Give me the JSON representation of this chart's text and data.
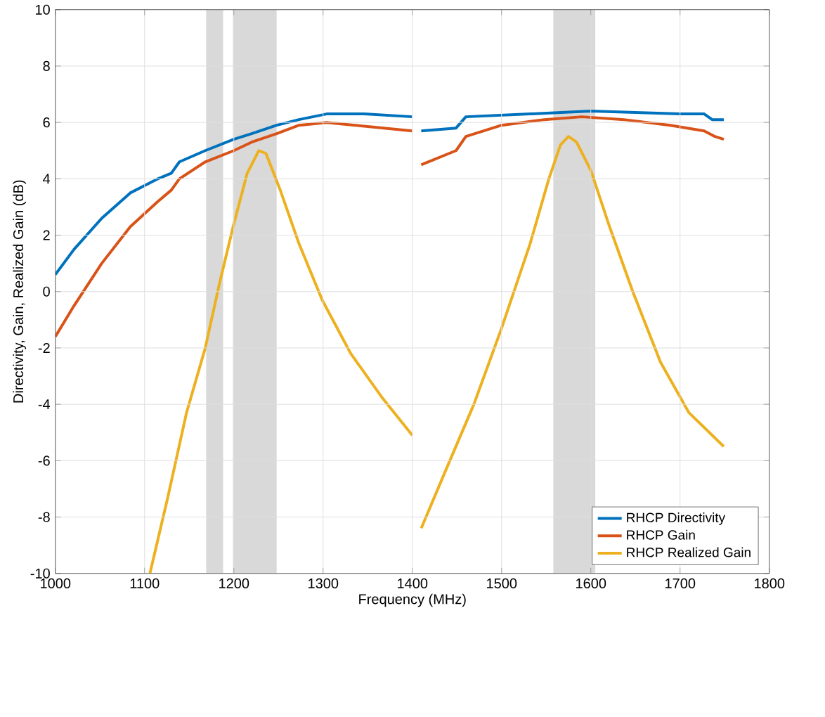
{
  "chart_data": {
    "type": "line",
    "xlabel": "Frequency (MHz)",
    "ylabel": "Directivity, Gain, Realized Gain (dB)",
    "xlim": [
      1000,
      1800
    ],
    "ylim": [
      -10,
      10
    ],
    "xticks": [
      1000,
      1100,
      1200,
      1300,
      1400,
      1500,
      1600,
      1700,
      1800
    ],
    "yticks": [
      -10,
      -8,
      -6,
      -4,
      -2,
      0,
      2,
      4,
      6,
      8,
      10
    ],
    "grid": true,
    "legend": "bottom right",
    "marker": "none",
    "line_style": "solid",
    "bands": [
      {
        "axis": "x",
        "from": 1169,
        "to": 1188,
        "color": "#d9d9d9"
      },
      {
        "axis": "x",
        "from": 1199,
        "to": 1248,
        "color": "#d9d9d9"
      },
      {
        "axis": "x",
        "from": 1558,
        "to": 1605,
        "color": "#d9d9d9"
      }
    ],
    "series": [
      {
        "name": "RHCP Directivity",
        "color": "#0072bd",
        "x": [
          1000,
          1021,
          1052,
          1084,
          1115,
          1130,
          1139,
          1168,
          1200,
          1220,
          1248,
          1273,
          1304,
          1346,
          1400,
          1405,
          1410,
          1449,
          1460,
          1532,
          1600,
          1700,
          1727,
          1736,
          1749
        ],
        "values": [
          0.6,
          1.5,
          2.6,
          3.5,
          4.0,
          4.2,
          4.6,
          5.0,
          5.4,
          5.6,
          5.9,
          6.1,
          6.3,
          6.3,
          6.2,
          null,
          5.7,
          5.8,
          6.2,
          6.3,
          6.4,
          6.3,
          6.3,
          6.1,
          6.1
        ]
      },
      {
        "name": "RHCP Gain",
        "color": "#d95319",
        "x": [
          1000,
          1021,
          1052,
          1084,
          1115,
          1130,
          1139,
          1168,
          1200,
          1220,
          1248,
          1273,
          1304,
          1336,
          1400,
          1405,
          1410,
          1449,
          1460,
          1500,
          1548,
          1590,
          1637,
          1689,
          1727,
          1739,
          1749
        ],
        "values": [
          -1.6,
          -0.5,
          1.0,
          2.3,
          3.2,
          3.6,
          4.0,
          4.6,
          5.0,
          5.3,
          5.6,
          5.9,
          6.0,
          5.9,
          5.7,
          null,
          4.5,
          5.0,
          5.5,
          5.9,
          6.1,
          6.2,
          6.1,
          5.9,
          5.7,
          5.5,
          5.4
        ]
      },
      {
        "name": "RHCP Realized Gain",
        "color": "#edb120",
        "x": [
          1106,
          1126,
          1147,
          1168,
          1184,
          1200,
          1215,
          1228,
          1236,
          1252,
          1273,
          1299,
          1331,
          1367,
          1400,
          1405,
          1410,
          1438,
          1469,
          1500,
          1532,
          1553,
          1566,
          1575,
          1584,
          1600,
          1621,
          1647,
          1678,
          1710,
          1749
        ],
        "values": [
          -10.0,
          -7.3,
          -4.3,
          -2.0,
          0.3,
          2.4,
          4.2,
          5.0,
          4.9,
          3.6,
          1.7,
          -0.3,
          -2.2,
          -3.8,
          -5.1,
          null,
          -8.4,
          -6.3,
          -4.0,
          -1.3,
          1.7,
          4.0,
          5.2,
          5.5,
          5.3,
          4.3,
          2.3,
          0.0,
          -2.5,
          -4.3,
          -5.5
        ]
      }
    ]
  }
}
